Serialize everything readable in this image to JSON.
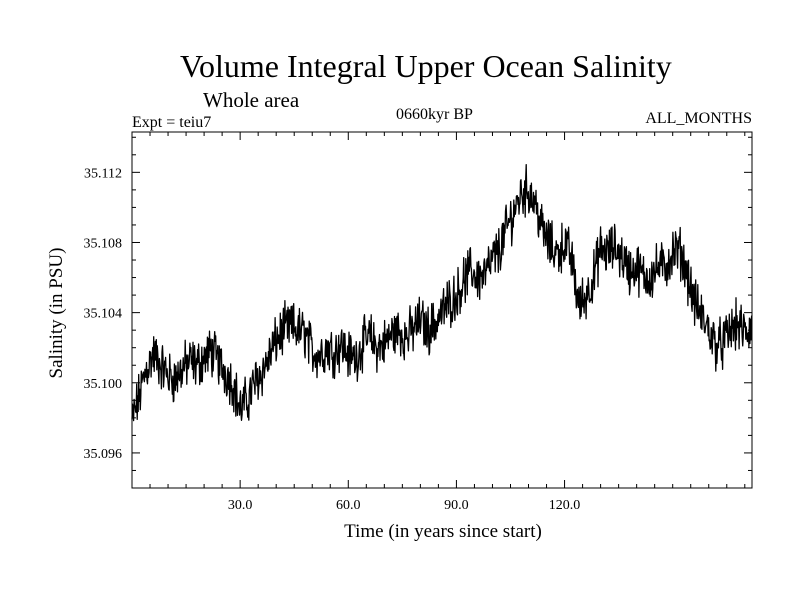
{
  "chart_data": {
    "type": "line",
    "title": "Volume Integral Upper Ocean Salinity",
    "subtitle": "Whole area",
    "experiment_label": "Expt = teiu7",
    "period_label": "0660kyr BP",
    "months_label": "ALL_MONTHS",
    "xlabel": "Time (in years since start)",
    "ylabel": "Salinity (in PSU)",
    "xlim": [
      0,
      172
    ],
    "ylim": [
      35.094,
      35.1143
    ],
    "xticks": [
      {
        "value": 30,
        "label": "30.0"
      },
      {
        "value": 60,
        "label": "60.0"
      },
      {
        "value": 90,
        "label": "90.0"
      },
      {
        "value": 120,
        "label": "120.0"
      }
    ],
    "yticks": [
      {
        "value": 35.096,
        "label": "35.096"
      },
      {
        "value": 35.1,
        "label": "35.100"
      },
      {
        "value": 35.104,
        "label": "35.104"
      },
      {
        "value": 35.108,
        "label": "35.108"
      },
      {
        "value": 35.112,
        "label": "35.112"
      }
    ],
    "series": [
      {
        "name": "Salinity",
        "x": [
          0,
          2,
          4,
          6,
          8,
          10,
          12,
          14,
          16,
          18,
          20,
          22,
          24,
          26,
          28,
          30,
          32,
          34,
          36,
          38,
          40,
          42,
          44,
          46,
          48,
          50,
          52,
          54,
          56,
          58,
          60,
          62,
          64,
          66,
          68,
          70,
          72,
          74,
          76,
          78,
          80,
          82,
          84,
          86,
          88,
          90,
          92,
          94,
          96,
          98,
          100,
          102,
          104,
          106,
          108,
          110,
          112,
          114,
          116,
          118,
          120,
          122,
          124,
          126,
          128,
          130,
          132,
          134,
          136,
          138,
          140,
          142,
          144,
          146,
          148,
          150,
          152,
          154,
          156,
          158,
          160,
          162,
          164,
          166,
          168,
          170,
          172
        ],
        "y": [
          35.0978,
          35.0992,
          35.1008,
          35.1016,
          35.101,
          35.1004,
          35.1002,
          35.1008,
          35.1012,
          35.101,
          35.1014,
          35.1018,
          35.1012,
          35.1006,
          35.1,
          35.0985,
          35.099,
          35.1,
          35.1006,
          35.1014,
          35.1024,
          35.103,
          35.1032,
          35.103,
          35.1028,
          35.1018,
          35.1016,
          35.102,
          35.1018,
          35.1022,
          35.1016,
          35.1014,
          35.1022,
          35.1026,
          35.102,
          35.1022,
          35.1028,
          35.103,
          35.1026,
          35.103,
          35.1036,
          35.103,
          35.1034,
          35.104,
          35.1046,
          35.105,
          35.1058,
          35.1064,
          35.106,
          35.1062,
          35.107,
          35.1076,
          35.1088,
          35.1098,
          35.1108,
          35.111,
          35.1102,
          35.1086,
          35.1078,
          35.1074,
          35.108,
          35.107,
          35.1044,
          35.105,
          35.106,
          35.1076,
          35.1074,
          35.1077,
          35.1072,
          35.1064,
          35.1066,
          35.106,
          35.1061,
          35.1066,
          35.1066,
          35.1074,
          35.1075,
          35.1062,
          35.1046,
          35.1038,
          35.103,
          35.1022,
          35.1022,
          35.103,
          35.1033,
          35.1028,
          35.1032
        ]
      }
    ]
  }
}
